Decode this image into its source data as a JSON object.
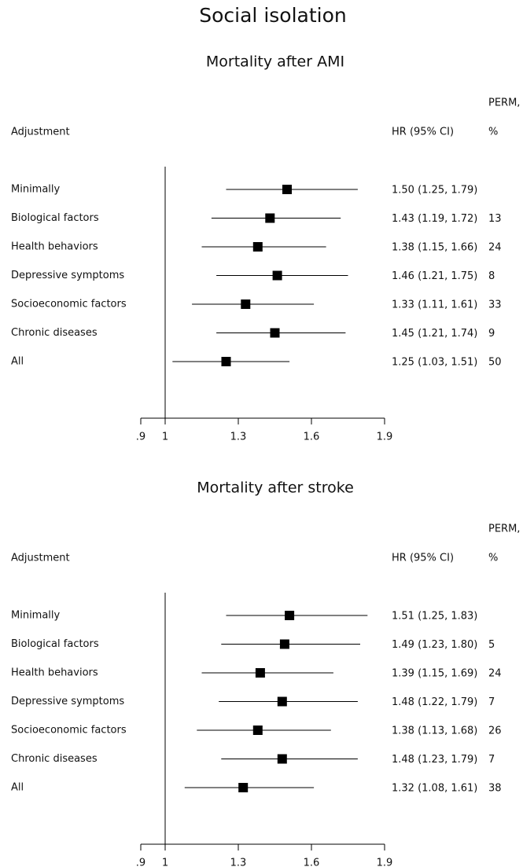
{
  "title": "Social isolation",
  "chart_data": [
    {
      "type": "forest",
      "title": "Mortality after AMI",
      "column_labels": {
        "adjustment": "Adjustment",
        "hr": "HR (95% CI)",
        "perm": [
          "PERM,",
          "%"
        ]
      },
      "categories": [
        "Minimally",
        "Biological factors",
        "Health behaviors",
        "Depressive symptoms",
        "Socioeconomic factors",
        "Chronic diseases",
        "All"
      ],
      "values": [
        1.5,
        1.43,
        1.38,
        1.46,
        1.33,
        1.45,
        1.25
      ],
      "lower": [
        1.25,
        1.19,
        1.15,
        1.21,
        1.11,
        1.21,
        1.03
      ],
      "upper": [
        1.79,
        1.72,
        1.66,
        1.75,
        1.61,
        1.74,
        1.51
      ],
      "value_labels": [
        "1.50 (1.25, 1.79)",
        "1.43 (1.19, 1.72)",
        "1.38 (1.15, 1.66)",
        "1.46 (1.21, 1.75)",
        "1.33 (1.11, 1.61)",
        "1.45 (1.21, 1.74)",
        "1.25 (1.03, 1.51)"
      ],
      "perm": [
        null,
        13,
        24,
        8,
        33,
        9,
        50
      ],
      "xlim": [
        0.9,
        1.9
      ],
      "xticks": [
        {
          "value": 0.9,
          "label": ".9"
        },
        1,
        1.3,
        1.6,
        1.9
      ],
      "reference": 1,
      "color": "#000000"
    },
    {
      "type": "forest",
      "title": "Mortality after stroke",
      "column_labels": {
        "adjustment": "Adjustment",
        "hr": "HR (95% CI)",
        "perm": [
          "PERM,",
          "%"
        ]
      },
      "categories": [
        "Minimally",
        "Biological factors",
        "Health behaviors",
        "Depressive symptoms",
        "Socioeconomic factors",
        "Chronic diseases",
        "All"
      ],
      "values": [
        1.51,
        1.49,
        1.39,
        1.48,
        1.38,
        1.48,
        1.32
      ],
      "lower": [
        1.25,
        1.23,
        1.15,
        1.22,
        1.13,
        1.23,
        1.08
      ],
      "upper": [
        1.83,
        1.8,
        1.69,
        1.79,
        1.68,
        1.79,
        1.61
      ],
      "value_labels": [
        "1.51 (1.25, 1.83)",
        "1.49 (1.23, 1.80)",
        "1.39 (1.15, 1.69)",
        "1.48 (1.22, 1.79)",
        "1.38 (1.13, 1.68)",
        "1.48 (1.23, 1.79)",
        "1.32 (1.08, 1.61)"
      ],
      "perm": [
        null,
        5,
        24,
        7,
        26,
        7,
        38
      ],
      "xlim": [
        0.9,
        1.9
      ],
      "xticks": [
        {
          "value": 0.9,
          "label": ".9"
        },
        1,
        1.3,
        1.6,
        1.9
      ],
      "reference": 1,
      "color": "#000000"
    }
  ]
}
